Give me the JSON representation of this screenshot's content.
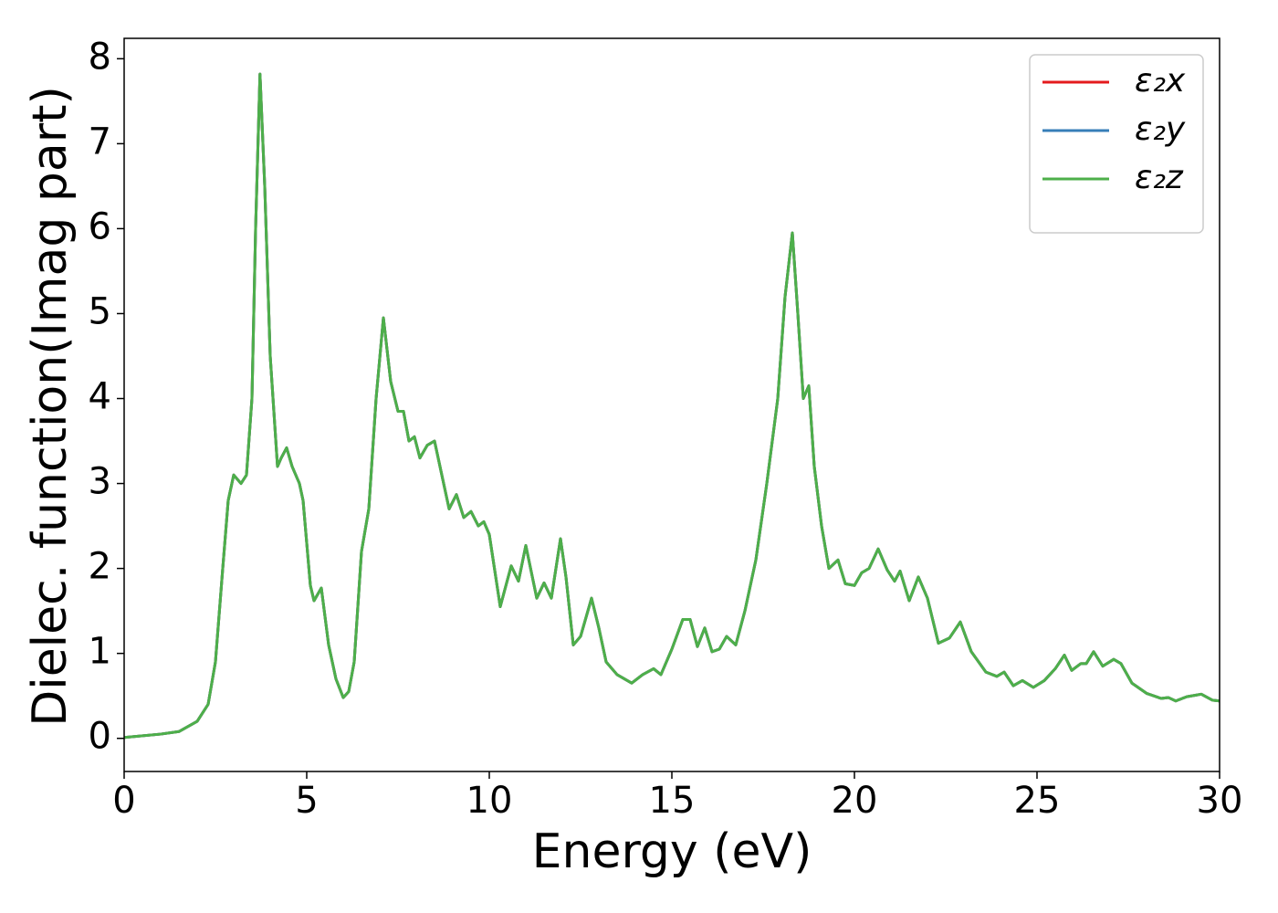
{
  "chart_data": {
    "type": "line",
    "xlabel": "Energy (eV)",
    "ylabel": "Dielec. function(Imag part)",
    "x": [
      0,
      1,
      1.5,
      2,
      2.3,
      2.5,
      2.7,
      2.85,
      3.0,
      3.2,
      3.35,
      3.5,
      3.6,
      3.72,
      3.85,
      4.0,
      4.2,
      4.3,
      4.45,
      4.6,
      4.8,
      4.9,
      5.0,
      5.1,
      5.2,
      5.4,
      5.6,
      5.8,
      6.0,
      6.15,
      6.3,
      6.5,
      6.7,
      6.9,
      7.1,
      7.3,
      7.5,
      7.65,
      7.8,
      7.95,
      8.1,
      8.3,
      8.5,
      8.7,
      8.9,
      9.1,
      9.3,
      9.5,
      9.7,
      9.85,
      10.0,
      10.3,
      10.6,
      10.8,
      11.0,
      11.3,
      11.5,
      11.7,
      11.95,
      12.1,
      12.3,
      12.5,
      12.8,
      13.0,
      13.2,
      13.5,
      13.9,
      14.2,
      14.5,
      14.7,
      15.0,
      15.3,
      15.5,
      15.7,
      15.9,
      16.1,
      16.3,
      16.5,
      16.75,
      17.0,
      17.3,
      17.6,
      17.9,
      18.1,
      18.3,
      18.45,
      18.6,
      18.75,
      18.9,
      19.1,
      19.3,
      19.55,
      19.75,
      20.0,
      20.2,
      20.4,
      20.65,
      20.9,
      21.1,
      21.25,
      21.5,
      21.75,
      22.0,
      22.3,
      22.6,
      22.9,
      23.2,
      23.6,
      23.9,
      24.1,
      24.35,
      24.6,
      24.9,
      25.2,
      25.5,
      25.75,
      25.95,
      26.2,
      26.35,
      26.55,
      26.8,
      27.1,
      27.3,
      27.6,
      28.0,
      28.4,
      28.6,
      28.8,
      29.1,
      29.5,
      29.8,
      30.0
    ],
    "series": [
      {
        "name": "ε₂x",
        "color": "#e41a1c",
        "values": [
          0.01,
          0.05,
          0.08,
          0.2,
          0.4,
          0.9,
          2.0,
          2.8,
          3.1,
          3.0,
          3.1,
          4.0,
          6.0,
          7.82,
          6.5,
          4.5,
          3.2,
          3.3,
          3.42,
          3.2,
          3.0,
          2.8,
          2.3,
          1.8,
          1.62,
          1.77,
          1.1,
          0.7,
          0.48,
          0.55,
          0.9,
          2.2,
          2.7,
          4.0,
          4.95,
          4.2,
          3.85,
          3.85,
          3.5,
          3.55,
          3.3,
          3.45,
          3.5,
          3.1,
          2.7,
          2.87,
          2.6,
          2.67,
          2.5,
          2.55,
          2.4,
          1.55,
          2.03,
          1.85,
          2.27,
          1.65,
          1.83,
          1.65,
          2.35,
          1.9,
          1.1,
          1.2,
          1.65,
          1.3,
          0.9,
          0.75,
          0.65,
          0.75,
          0.82,
          0.75,
          1.05,
          1.4,
          1.4,
          1.08,
          1.3,
          1.02,
          1.05,
          1.2,
          1.1,
          1.5,
          2.1,
          3.0,
          4.0,
          5.2,
          5.95,
          5.0,
          4.0,
          4.15,
          3.2,
          2.5,
          2.0,
          2.1,
          1.82,
          1.8,
          1.95,
          2.0,
          2.23,
          1.98,
          1.85,
          1.97,
          1.62,
          1.9,
          1.65,
          1.12,
          1.18,
          1.37,
          1.02,
          0.78,
          0.73,
          0.78,
          0.62,
          0.68,
          0.6,
          0.68,
          0.82,
          0.98,
          0.8,
          0.88,
          0.88,
          1.02,
          0.85,
          0.93,
          0.88,
          0.65,
          0.53,
          0.47,
          0.48,
          0.44,
          0.49,
          0.52,
          0.45,
          0.44
        ]
      },
      {
        "name": "ε₂y",
        "color": "#377eb8",
        "values": [
          0.01,
          0.05,
          0.08,
          0.2,
          0.4,
          0.9,
          2.0,
          2.8,
          3.1,
          3.0,
          3.1,
          4.0,
          6.0,
          7.82,
          6.5,
          4.5,
          3.2,
          3.3,
          3.42,
          3.2,
          3.0,
          2.8,
          2.3,
          1.8,
          1.62,
          1.77,
          1.1,
          0.7,
          0.48,
          0.55,
          0.9,
          2.2,
          2.7,
          4.0,
          4.95,
          4.2,
          3.85,
          3.85,
          3.5,
          3.55,
          3.3,
          3.45,
          3.5,
          3.1,
          2.7,
          2.87,
          2.6,
          2.67,
          2.5,
          2.55,
          2.4,
          1.55,
          2.03,
          1.85,
          2.27,
          1.65,
          1.83,
          1.65,
          2.35,
          1.9,
          1.1,
          1.2,
          1.65,
          1.3,
          0.9,
          0.75,
          0.65,
          0.75,
          0.82,
          0.75,
          1.05,
          1.4,
          1.4,
          1.08,
          1.3,
          1.02,
          1.05,
          1.2,
          1.1,
          1.5,
          2.1,
          3.0,
          4.0,
          5.2,
          5.95,
          5.0,
          4.0,
          4.15,
          3.2,
          2.5,
          2.0,
          2.1,
          1.82,
          1.8,
          1.95,
          2.0,
          2.23,
          1.98,
          1.85,
          1.97,
          1.62,
          1.9,
          1.65,
          1.12,
          1.18,
          1.37,
          1.02,
          0.78,
          0.73,
          0.78,
          0.62,
          0.68,
          0.6,
          0.68,
          0.82,
          0.98,
          0.8,
          0.88,
          0.88,
          1.02,
          0.85,
          0.93,
          0.88,
          0.65,
          0.53,
          0.47,
          0.48,
          0.44,
          0.49,
          0.52,
          0.45,
          0.44
        ]
      },
      {
        "name": "ε₂z",
        "color": "#4daf4a",
        "values": [
          0.01,
          0.05,
          0.08,
          0.2,
          0.4,
          0.9,
          2.0,
          2.8,
          3.1,
          3.0,
          3.1,
          4.0,
          6.0,
          7.82,
          6.5,
          4.5,
          3.2,
          3.3,
          3.42,
          3.2,
          3.0,
          2.8,
          2.3,
          1.8,
          1.62,
          1.77,
          1.1,
          0.7,
          0.48,
          0.55,
          0.9,
          2.2,
          2.7,
          4.0,
          4.95,
          4.2,
          3.85,
          3.85,
          3.5,
          3.55,
          3.3,
          3.45,
          3.5,
          3.1,
          2.7,
          2.87,
          2.6,
          2.67,
          2.5,
          2.55,
          2.4,
          1.55,
          2.03,
          1.85,
          2.27,
          1.65,
          1.83,
          1.65,
          2.35,
          1.9,
          1.1,
          1.2,
          1.65,
          1.3,
          0.9,
          0.75,
          0.65,
          0.75,
          0.82,
          0.75,
          1.05,
          1.4,
          1.4,
          1.08,
          1.3,
          1.02,
          1.05,
          1.2,
          1.1,
          1.5,
          2.1,
          3.0,
          4.0,
          5.2,
          5.95,
          5.0,
          4.0,
          4.15,
          3.2,
          2.5,
          2.0,
          2.1,
          1.82,
          1.8,
          1.95,
          2.0,
          2.23,
          1.98,
          1.85,
          1.97,
          1.62,
          1.9,
          1.65,
          1.12,
          1.18,
          1.37,
          1.02,
          0.78,
          0.73,
          0.78,
          0.62,
          0.68,
          0.6,
          0.68,
          0.82,
          0.98,
          0.8,
          0.88,
          0.88,
          1.02,
          0.85,
          0.93,
          0.88,
          0.65,
          0.53,
          0.47,
          0.48,
          0.44,
          0.49,
          0.52,
          0.45,
          0.44
        ]
      }
    ],
    "xlim": [
      0,
      30
    ],
    "xticks": [
      0,
      5,
      10,
      15,
      20,
      25,
      30
    ],
    "ylim": [
      -0.39,
      8.24
    ],
    "yticks": [
      0,
      1,
      2,
      3,
      4,
      5,
      6,
      7,
      8
    ],
    "grid": false,
    "legend": "upper right"
  }
}
